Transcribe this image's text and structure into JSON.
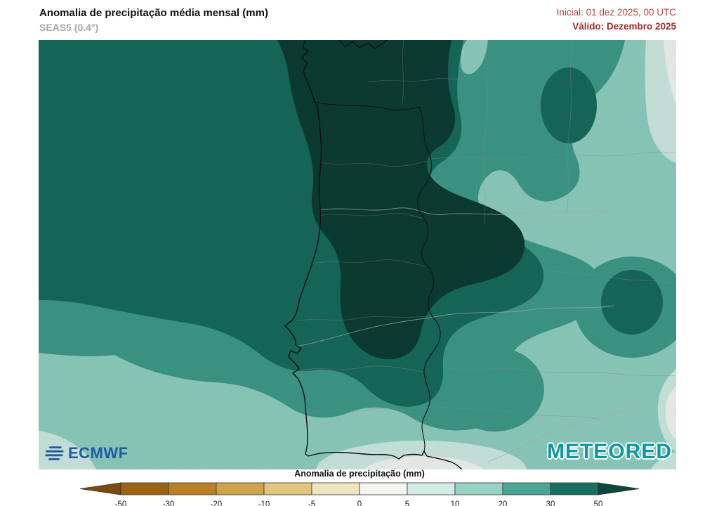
{
  "header": {
    "title": "Anomalia de precipitação média mensal (mm)",
    "model": "SEAS5 (0.4°)",
    "run": "Inicial: 01 dez 2025, 00 UTC",
    "valid": "Válido: Dezembro 2025"
  },
  "map": {
    "palette": {
      "gt50": "#0c3d34",
      "p30_50": "#176b5c",
      "p20_30": "#3e9a88",
      "p10_20": "#8fcfc0",
      "p5_10": "#cdeae2",
      "p0_5": "#f0f5f2"
    },
    "logos": {
      "ecmwf": "ECMWF",
      "meteored": "METEORED"
    }
  },
  "legend": {
    "title": "Anomalia de precipitação (mm)",
    "ticks": [
      "-50",
      "-30",
      "-20",
      "-10",
      "-5",
      "0",
      "5",
      "10",
      "20",
      "30",
      "50"
    ],
    "segments": [
      "#996414",
      "#b98127",
      "#cfa44c",
      "#e2c67e",
      "#efe5c0",
      "#f4f4f1",
      "#d4ece5",
      "#97d3c4",
      "#4ba795",
      "#16705e"
    ],
    "arrow_left": "#7a4b0e",
    "arrow_right": "#0b463b"
  }
}
